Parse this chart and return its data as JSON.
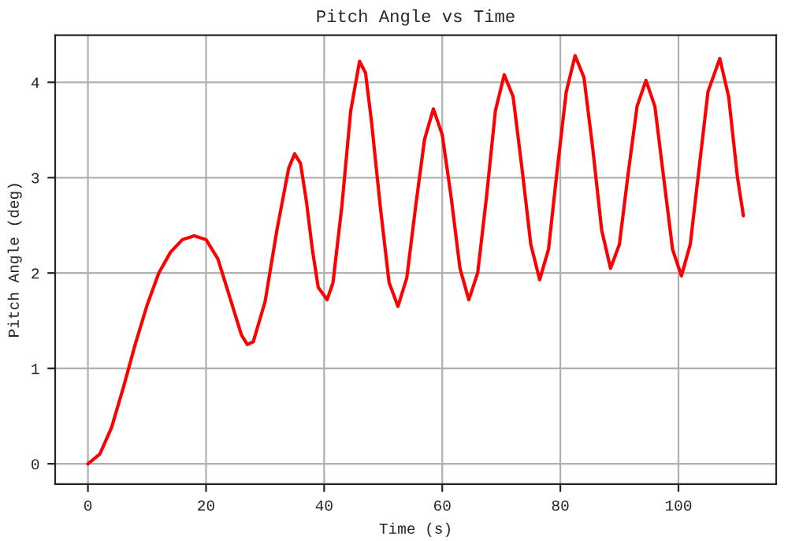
{
  "chart_data": {
    "type": "line",
    "title": "Pitch Angle vs Time",
    "xlabel": "Time (s)",
    "ylabel": "Pitch Angle (deg)",
    "xlim": [
      -5.55,
      116.55
    ],
    "ylim": [
      -0.214,
      4.494
    ],
    "xticks": [
      0,
      20,
      40,
      60,
      80,
      100
    ],
    "yticks": [
      0,
      1,
      2,
      3,
      4
    ],
    "grid": true,
    "series": [
      {
        "color": "#ff0000",
        "x": [
          0,
          2,
          4,
          6,
          8,
          10,
          12,
          14,
          16,
          18,
          20,
          22,
          24,
          26,
          27,
          28,
          30,
          32,
          34,
          35,
          36,
          37,
          38,
          39,
          40.5,
          41.5,
          43,
          44.5,
          46,
          47,
          48,
          49.5,
          51,
          52.5,
          54,
          55.5,
          57,
          58.5,
          60,
          61.5,
          63,
          64.5,
          66,
          67.5,
          69,
          70.5,
          72,
          73.5,
          75,
          76.5,
          78,
          79.5,
          81,
          82.5,
          84,
          85.5,
          87,
          88.5,
          90,
          91.5,
          93,
          94.5,
          96,
          97.5,
          99,
          100.5,
          102,
          103.5,
          105,
          107,
          108.5,
          110,
          111
        ],
        "values": [
          0,
          0.1,
          0.38,
          0.8,
          1.25,
          1.66,
          2.0,
          2.22,
          2.35,
          2.39,
          2.35,
          2.15,
          1.75,
          1.35,
          1.25,
          1.28,
          1.7,
          2.45,
          3.1,
          3.25,
          3.15,
          2.75,
          2.25,
          1.85,
          1.72,
          1.9,
          2.7,
          3.7,
          4.22,
          4.1,
          3.6,
          2.7,
          1.9,
          1.65,
          1.95,
          2.7,
          3.4,
          3.72,
          3.45,
          2.8,
          2.05,
          1.72,
          2.0,
          2.8,
          3.7,
          4.08,
          3.85,
          3.1,
          2.3,
          1.93,
          2.25,
          3.1,
          3.9,
          4.28,
          4.05,
          3.3,
          2.45,
          2.05,
          2.3,
          3.05,
          3.75,
          4.02,
          3.75,
          3.0,
          2.25,
          1.97,
          2.3,
          3.1,
          3.9,
          4.25,
          3.85,
          3.0,
          2.6
        ]
      }
    ]
  }
}
